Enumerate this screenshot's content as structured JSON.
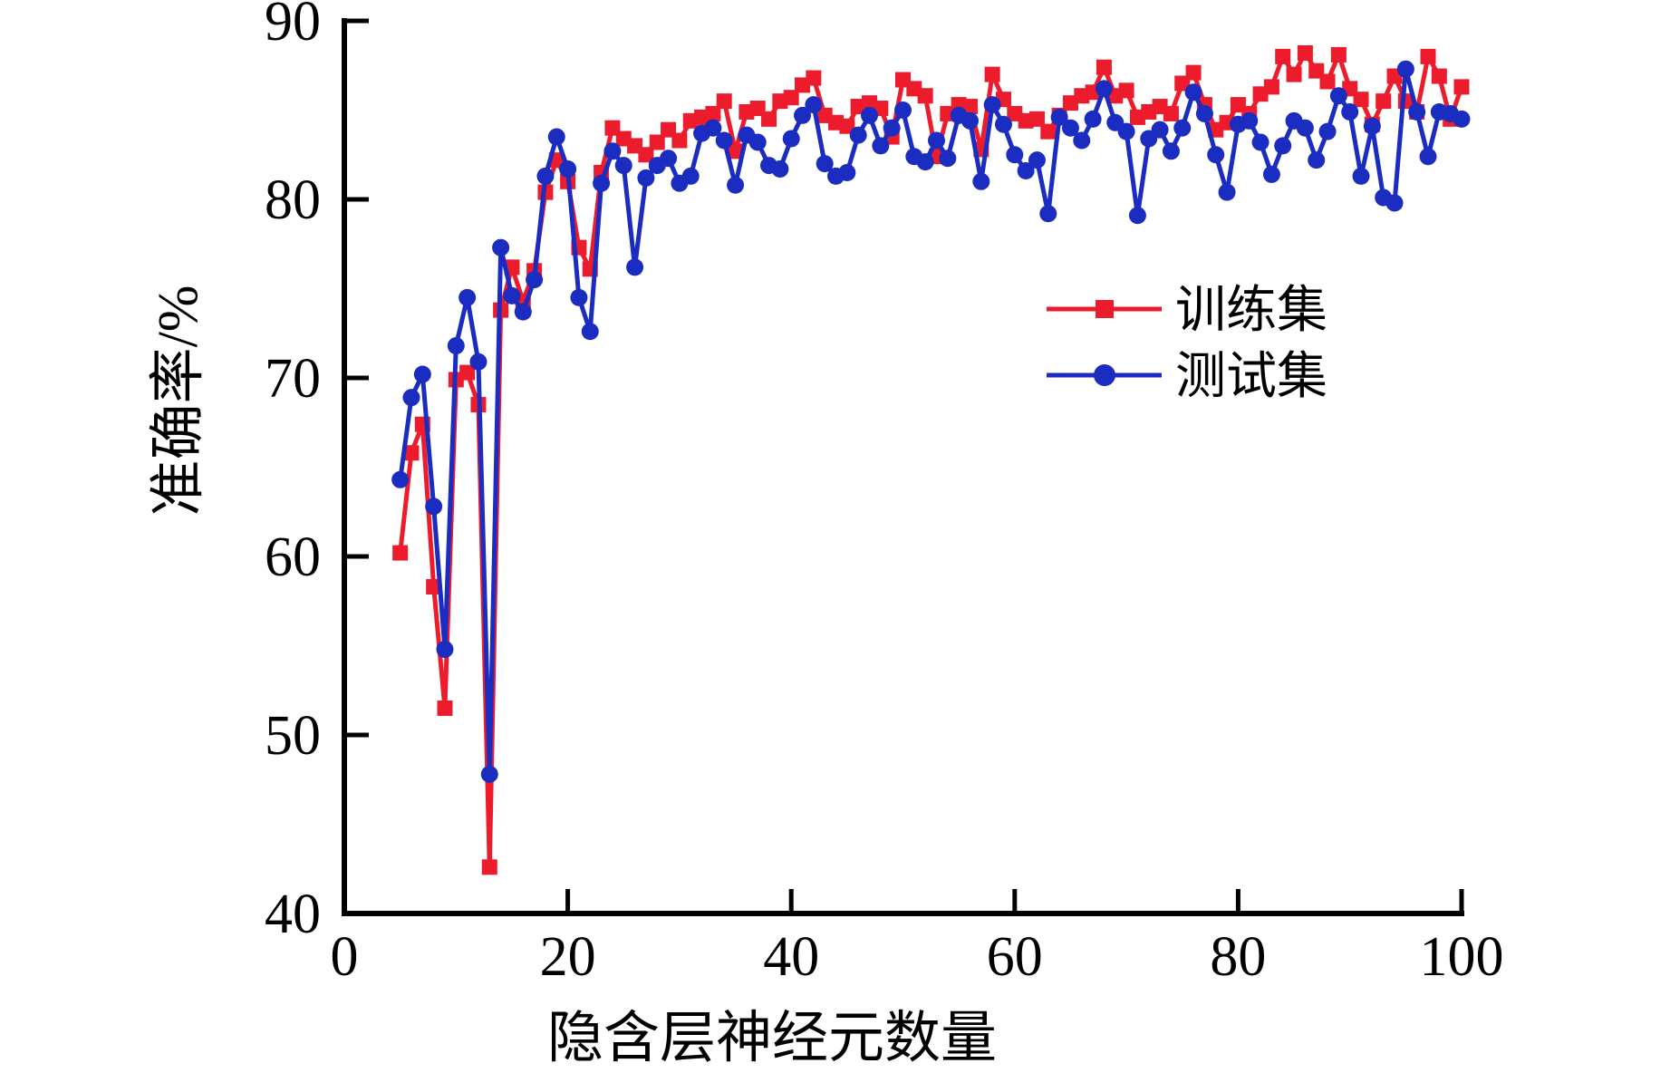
{
  "chart_data": {
    "type": "line",
    "title": "",
    "xlabel": "隐含层神经元数量",
    "ylabel": "准确率/%",
    "xlim": [
      0,
      100
    ],
    "ylim": [
      40,
      90
    ],
    "x_ticks": [
      0,
      20,
      40,
      60,
      80,
      100
    ],
    "y_ticks": [
      40,
      50,
      60,
      70,
      80,
      90
    ],
    "grid": false,
    "legend_position": "inside-upper-right",
    "x_start": 5,
    "x_step": 1,
    "series": [
      {
        "name": "训练集",
        "color": "#ec1c2d",
        "marker": "square",
        "values": [
          60.2,
          65.8,
          67.4,
          58.3,
          51.5,
          69.9,
          70.3,
          68.5,
          42.6,
          73.8,
          76.2,
          74.3,
          76.0,
          80.4,
          82.2,
          81.0,
          77.3,
          76.1,
          81.5,
          84.0,
          83.4,
          83.0,
          82.5,
          83.2,
          83.9,
          83.3,
          84.4,
          84.6,
          84.8,
          85.5,
          82.7,
          84.9,
          85.1,
          84.5,
          85.5,
          85.7,
          86.4,
          86.8,
          84.7,
          84.3,
          84.1,
          85.2,
          85.4,
          85.1,
          83.5,
          86.7,
          86.2,
          85.8,
          82.4,
          84.8,
          85.3,
          85.2,
          82.8,
          87.0,
          85.6,
          84.8,
          84.4,
          84.5,
          83.8,
          84.7,
          85.4,
          85.8,
          86.0,
          87.4,
          85.8,
          86.1,
          84.6,
          84.9,
          85.2,
          84.8,
          86.5,
          87.1,
          85.3,
          83.9,
          84.3,
          85.3,
          84.8,
          85.9,
          86.3,
          88.0,
          87.0,
          88.2,
          87.2,
          86.6,
          88.1,
          86.2,
          85.6,
          84.2,
          85.5,
          86.9,
          85.5,
          84.9,
          88.0,
          86.9,
          84.5,
          86.3
        ]
      },
      {
        "name": "测试集",
        "color": "#1b2cc1",
        "marker": "circle",
        "values": [
          64.3,
          68.9,
          70.2,
          62.8,
          54.8,
          71.8,
          74.5,
          70.9,
          47.8,
          77.3,
          74.6,
          73.7,
          75.5,
          81.3,
          83.5,
          81.7,
          74.5,
          72.6,
          80.9,
          82.7,
          81.9,
          76.2,
          81.2,
          81.9,
          82.3,
          80.9,
          81.3,
          83.7,
          84.0,
          83.3,
          80.8,
          83.6,
          83.2,
          81.9,
          81.7,
          83.4,
          84.7,
          85.3,
          82.0,
          81.3,
          81.5,
          83.6,
          84.7,
          83.0,
          84.0,
          85.0,
          82.4,
          82.1,
          83.3,
          82.3,
          84.7,
          84.4,
          81.0,
          85.3,
          84.2,
          82.5,
          81.6,
          82.2,
          79.2,
          84.6,
          84.0,
          83.3,
          84.5,
          86.2,
          84.3,
          83.8,
          79.1,
          83.4,
          83.9,
          82.7,
          84.0,
          86.0,
          84.8,
          82.5,
          80.4,
          84.2,
          84.4,
          83.2,
          81.4,
          83.0,
          84.4,
          84.0,
          82.2,
          83.8,
          85.8,
          84.9,
          81.3,
          84.1,
          80.1,
          79.8,
          87.3,
          84.9,
          82.4,
          84.9,
          84.8,
          84.5
        ]
      }
    ]
  }
}
